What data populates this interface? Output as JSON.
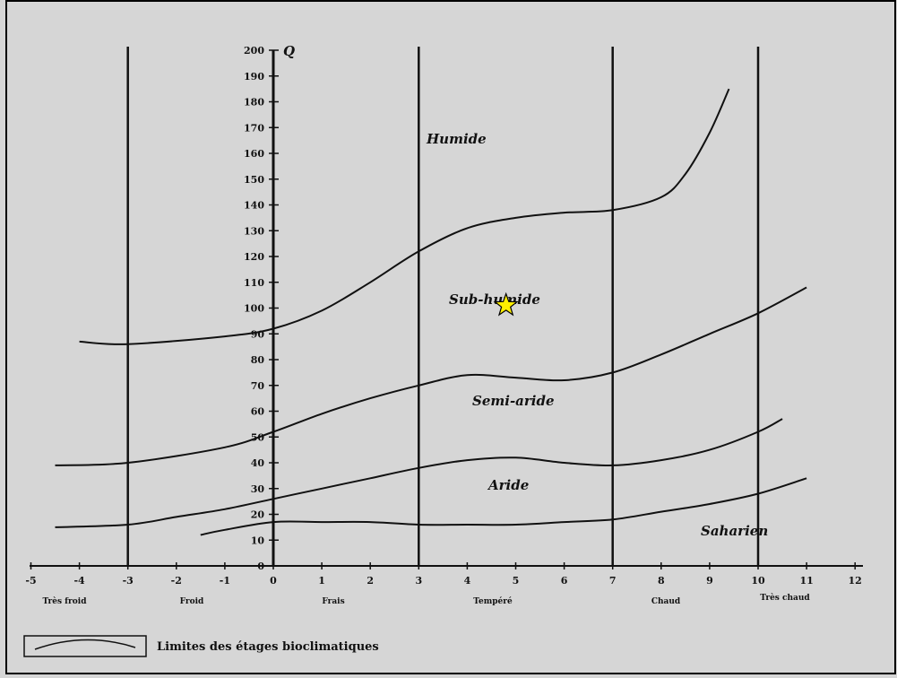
{
  "chart_data": {
    "type": "line",
    "y_label": "Q",
    "x_range": [
      -5,
      12
    ],
    "y_range": [
      0,
      200
    ],
    "x_ticks": [
      "-5",
      "-4",
      "-3",
      "-2",
      "-1",
      "0",
      "1",
      "2",
      "3",
      "4",
      "5",
      "6",
      "7",
      "8",
      "9",
      "10",
      "11",
      "12"
    ],
    "y_ticks": [
      "200",
      "190",
      "180",
      "170",
      "160",
      "150",
      "140",
      "130",
      "120",
      "110",
      "100",
      "90",
      "80",
      "70",
      "60",
      "50",
      "40",
      "30",
      "20",
      "10",
      "0"
    ],
    "vertical_lines": [
      -3,
      0,
      3,
      7,
      10
    ],
    "regions": [
      "Humide",
      "Sub-humide",
      "Semi-aride",
      "Aride",
      "Saharien"
    ],
    "zones": [
      "Très froid",
      "Froid",
      "Frais",
      "Tempéré",
      "Chaud",
      "Très chaud"
    ],
    "legend": "Limites des étages bioclimatiques",
    "series": [
      {
        "x": [
          -4,
          -3,
          -1,
          0,
          1,
          2,
          3,
          4,
          5,
          6,
          7,
          8,
          8.5,
          9,
          9.4
        ],
        "y": [
          87,
          86,
          89,
          92,
          99,
          110,
          122,
          131,
          135,
          137,
          138,
          143,
          152,
          168,
          185
        ]
      },
      {
        "x": [
          -4.5,
          -3,
          -1,
          0,
          1,
          2,
          3,
          4,
          5,
          6,
          7,
          8,
          9,
          10,
          11
        ],
        "y": [
          39,
          40,
          46,
          52,
          59,
          65,
          70,
          74,
          73,
          72,
          75,
          82,
          90,
          98,
          108
        ]
      },
      {
        "x": [
          -4.5,
          -3,
          -2,
          -1,
          0,
          1,
          2,
          3,
          4,
          5,
          6,
          7,
          8,
          9,
          10,
          10.5
        ],
        "y": [
          15,
          16,
          19,
          22,
          26,
          30,
          34,
          38,
          41,
          42,
          40,
          39,
          41,
          45,
          52,
          57
        ]
      },
      {
        "x": [
          -1.5,
          -1,
          0,
          1,
          2,
          3,
          4,
          5,
          6,
          7,
          8,
          9,
          10,
          11
        ],
        "y": [
          12,
          14,
          17,
          17,
          17,
          16,
          16,
          16,
          17,
          18,
          21,
          24,
          28,
          34
        ]
      }
    ],
    "marker": {
      "x": 4.8,
      "y": 101,
      "shape": "star",
      "fill": "#ffee00"
    }
  }
}
